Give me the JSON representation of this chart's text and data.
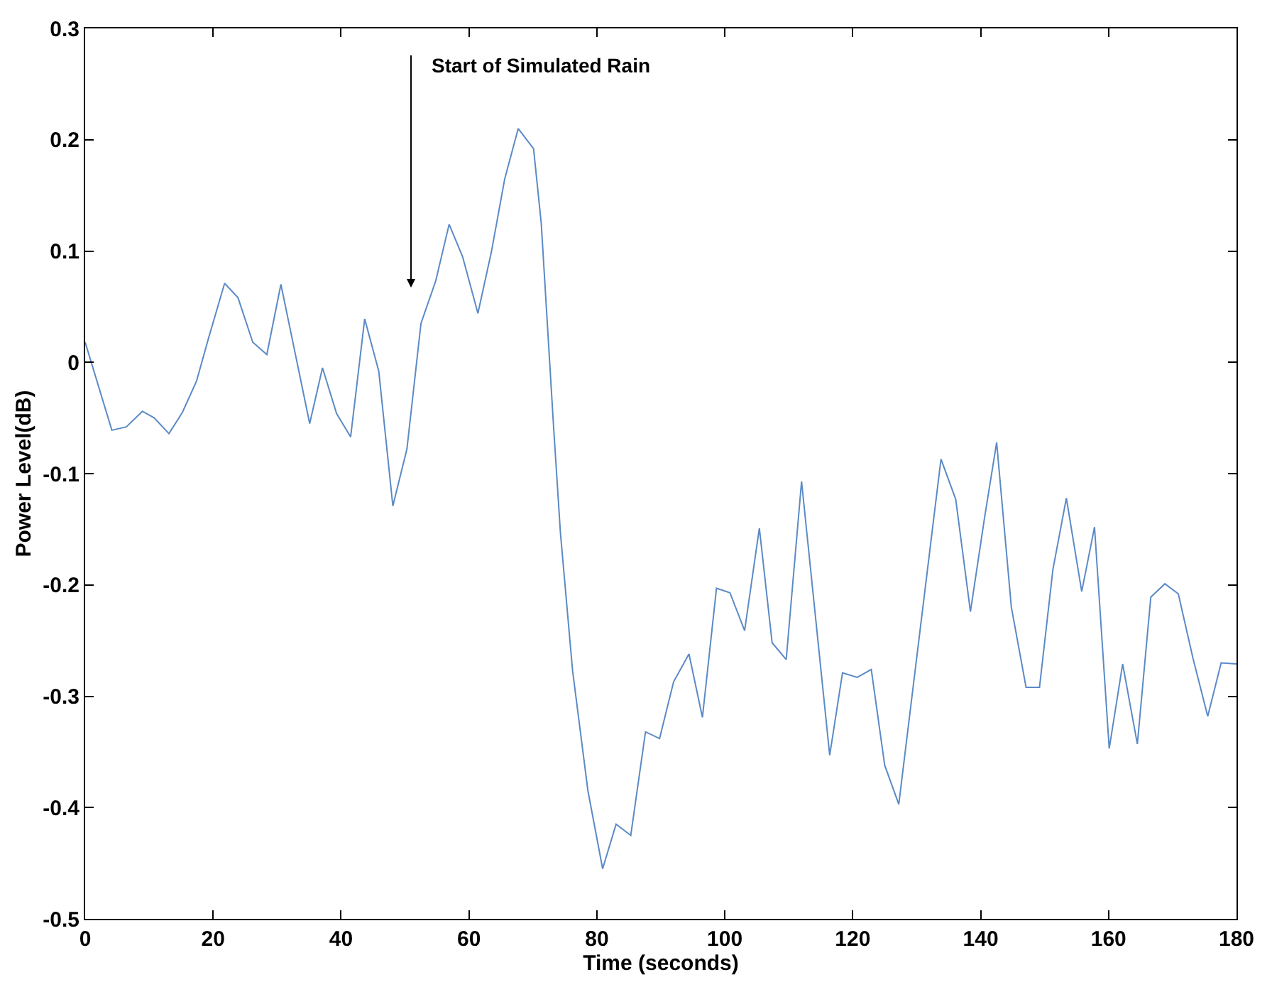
{
  "chart_data": {
    "type": "line",
    "xlabel": "Time (seconds)",
    "ylabel": "Power Level(dB)",
    "x": [
      0,
      4.17,
      6.44,
      8.95,
      10.8,
      13.1,
      15.2,
      17.4,
      19.3,
      21.8,
      23.9,
      26.2,
      28.4,
      30.6,
      32.8,
      35.1,
      37.1,
      39.3,
      41.5,
      43.7,
      45.9,
      48.1,
      50.3,
      52.5,
      54.8,
      56.9,
      59.0,
      61.4,
      63.5,
      65.6,
      67.7,
      70.1,
      71.3,
      73.2,
      74.3,
      76.2,
      78.6,
      80.9,
      83.0,
      85.3,
      87.6,
      89.8,
      92.0,
      94.4,
      96.5,
      98.7,
      100.8,
      103.1,
      105.4,
      107.4,
      109.6,
      112.0,
      116.4,
      118.4,
      120.7,
      122.9,
      125.0,
      127.2,
      133.8,
      136.1,
      138.4,
      140.6,
      142.5,
      144.8,
      147.1,
      149.2,
      151.3,
      153.4,
      155.8,
      157.8,
      160.1,
      162.2,
      164.5,
      166.6,
      168.8,
      170.9,
      173.2,
      175.5,
      177.6,
      180
    ],
    "series": [
      {
        "color": "#5b8ac6",
        "values": [
          0.018,
          -0.061,
          -0.058,
          -0.044,
          -0.05,
          -0.064,
          -0.045,
          -0.017,
          0.022,
          0.071,
          0.058,
          0.018,
          0.007,
          0.07,
          0.009,
          -0.055,
          -0.005,
          -0.046,
          -0.067,
          0.039,
          -0.008,
          -0.129,
          -0.078,
          0.035,
          0.073,
          0.124,
          0.095,
          0.044,
          0.099,
          0.165,
          0.21,
          0.192,
          0.125,
          -0.055,
          -0.153,
          -0.277,
          -0.385,
          -0.455,
          -0.415,
          -0.425,
          -0.332,
          -0.338,
          -0.287,
          -0.262,
          -0.319,
          -0.203,
          -0.207,
          -0.241,
          -0.149,
          -0.252,
          -0.267,
          -0.107,
          -0.353,
          -0.279,
          -0.283,
          -0.276,
          -0.362,
          -0.397,
          -0.087,
          -0.123,
          -0.224,
          -0.14,
          -0.072,
          -0.22,
          -0.292,
          -0.292,
          -0.186,
          -0.122,
          -0.206,
          -0.148,
          -0.347,
          -0.271,
          -0.343,
          -0.211,
          -0.199,
          -0.208,
          -0.266,
          -0.318,
          -0.27,
          -0.271
        ]
      }
    ],
    "xlim": [
      0,
      180
    ],
    "xticks": [
      0,
      20,
      40,
      60,
      80,
      100,
      120,
      140,
      160,
      180
    ],
    "ylim": [
      -0.5,
      0.3
    ],
    "yticks": [
      -0.5,
      -0.4,
      -0.3,
      -0.2,
      -0.1,
      0,
      0.1,
      0.2,
      0.3
    ],
    "marker": "none",
    "line_style": "solid",
    "annotations": [
      "Start of Simulated Rain"
    ]
  }
}
